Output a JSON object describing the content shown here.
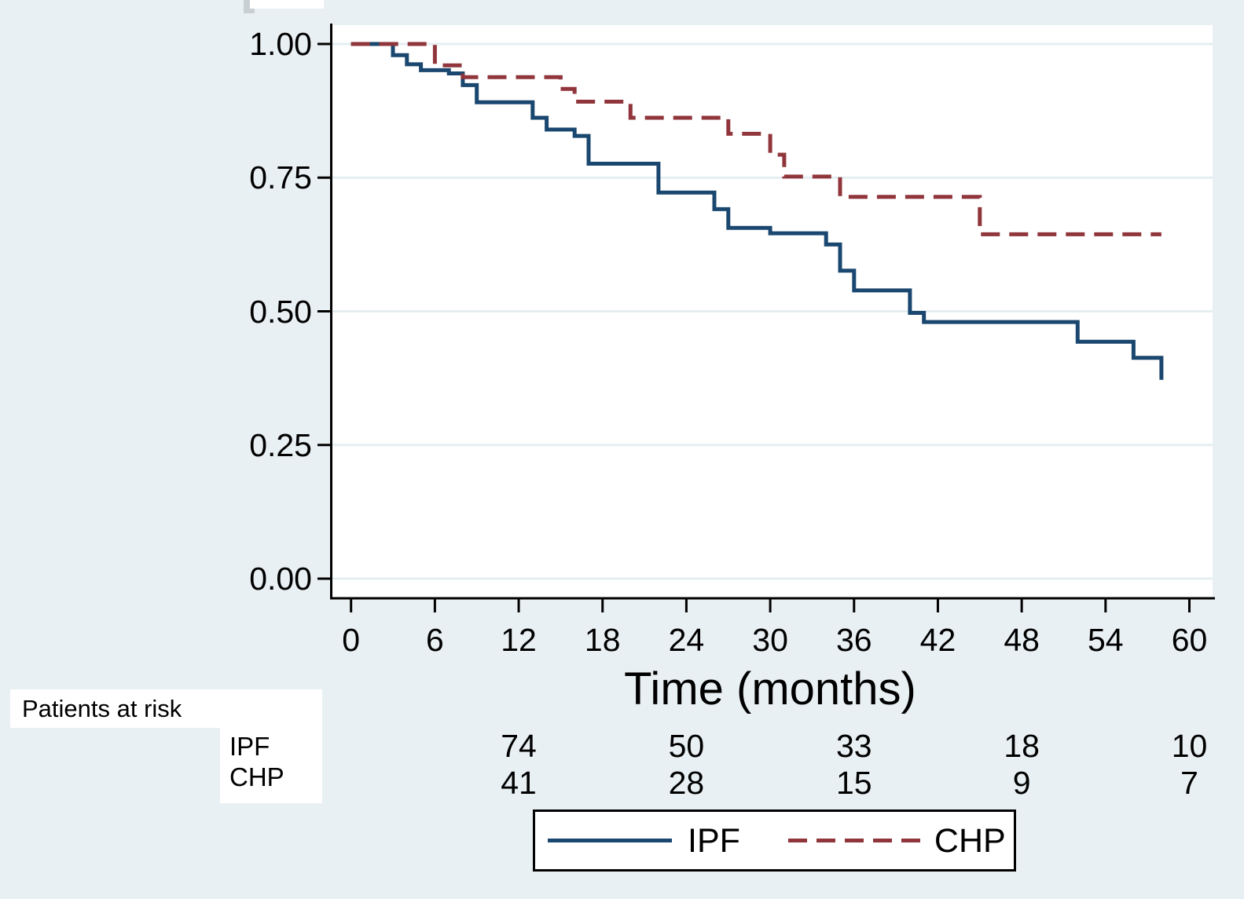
{
  "figure": {
    "background_color": "#E9F0F3",
    "plot_background_color": "#FFFFFF",
    "grid_color": "#E4EEF1",
    "axis_color": "#000000"
  },
  "chart_data": {
    "type": "line",
    "subtype": "kaplan-meier-step",
    "title": "",
    "xlabel": "Time (months)",
    "ylabel": "",
    "xlim": [
      0,
      61.5
    ],
    "ylim": [
      0.0,
      1.0
    ],
    "grid": "horizontal-only",
    "x_ticks": [
      0,
      6,
      12,
      18,
      24,
      30,
      36,
      42,
      48,
      54,
      60
    ],
    "y_ticks": [
      1.0,
      0.75,
      0.5,
      0.25,
      0.0
    ],
    "y_tick_labels": [
      "1.00",
      "0.75",
      "0.50",
      "0.25",
      "0.00"
    ],
    "legend_position": "bottom-center",
    "series": [
      {
        "name": "IPF",
        "color": "#1A476F",
        "line_style": "solid",
        "points": [
          [
            0,
            1.0
          ],
          [
            3,
            0.979
          ],
          [
            4,
            0.962
          ],
          [
            5,
            0.951
          ],
          [
            7,
            0.945
          ],
          [
            8,
            0.923
          ],
          [
            9,
            0.891
          ],
          [
            13,
            0.862
          ],
          [
            14,
            0.84
          ],
          [
            16,
            0.828
          ],
          [
            17,
            0.776
          ],
          [
            22,
            0.722
          ],
          [
            26,
            0.691
          ],
          [
            27,
            0.656
          ],
          [
            30,
            0.646
          ],
          [
            34,
            0.625
          ],
          [
            35,
            0.576
          ],
          [
            36,
            0.539
          ],
          [
            40,
            0.497
          ],
          [
            41,
            0.48
          ],
          [
            52,
            0.443
          ],
          [
            56,
            0.413
          ],
          [
            58,
            0.372
          ]
        ]
      },
      {
        "name": "CHP",
        "color": "#90353B",
        "line_style": "dashed",
        "points": [
          [
            0,
            1.0
          ],
          [
            6,
            0.96
          ],
          [
            8,
            0.938
          ],
          [
            15,
            0.916
          ],
          [
            16,
            0.892
          ],
          [
            20,
            0.862
          ],
          [
            27,
            0.832
          ],
          [
            30,
            0.793
          ],
          [
            31,
            0.752
          ],
          [
            35,
            0.714
          ],
          [
            45,
            0.644
          ],
          [
            58,
            0.644
          ]
        ]
      }
    ]
  },
  "risk_table": {
    "title": "Patients at risk",
    "times": [
      12,
      24,
      36,
      48,
      60
    ],
    "rows": [
      {
        "label": "IPF",
        "counts": [
          "74",
          "50",
          "33",
          "18",
          "10"
        ]
      },
      {
        "label": "CHP",
        "counts": [
          "41",
          "28",
          "15",
          "9",
          "7"
        ]
      }
    ]
  },
  "legend": {
    "items": [
      {
        "label": "IPF",
        "style": "solid",
        "color": "#1A476F"
      },
      {
        "label": "CHP",
        "style": "dashed",
        "color": "#90353B"
      }
    ]
  }
}
